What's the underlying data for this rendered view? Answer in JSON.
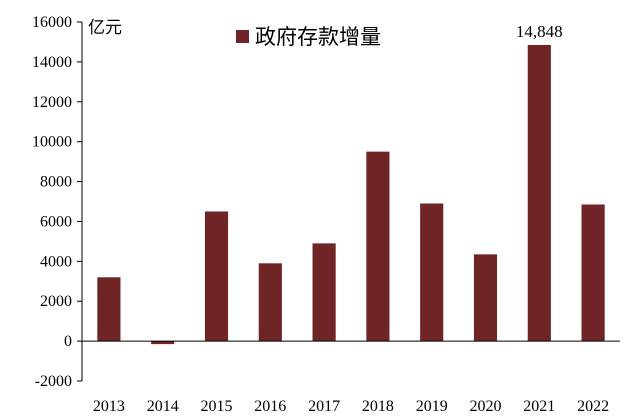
{
  "chart_data": {
    "type": "bar",
    "categories": [
      "2013",
      "2014",
      "2015",
      "2016",
      "2017",
      "2018",
      "2019",
      "2020",
      "2021",
      "2022"
    ],
    "series": [
      {
        "name": "政府存款增量",
        "values": [
          3200,
          -150,
          6500,
          3900,
          4900,
          9500,
          6900,
          4350,
          14848,
          6850
        ],
        "color": "#6f2426"
      }
    ],
    "ylim": [
      -2000,
      16000
    ],
    "yticks": [
      -2000,
      0,
      2000,
      4000,
      6000,
      8000,
      10000,
      12000,
      14000,
      16000
    ],
    "ylabel": "亿元",
    "data_labels": [
      {
        "category": "2021",
        "text": "14,848"
      }
    ],
    "legend_position": "top-center",
    "grid": false
  }
}
